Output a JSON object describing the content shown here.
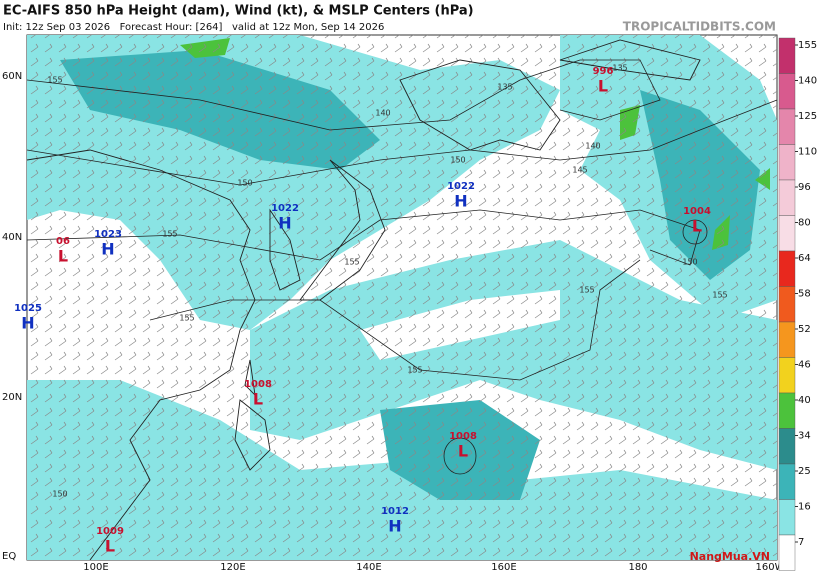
{
  "header": {
    "title": "EC-AIFS 850 hPa Height (dam), Wind (kt), & MSLP Centers (hPa)",
    "subtitle": "Init: 12z Sep 03 2026   Forecast Hour: [264]   valid at 12z Mon, Sep 14 2026",
    "site": "TROPICALTIDBITS.COM"
  },
  "map": {
    "lat_labels": [
      "60N",
      "40N",
      "20N",
      "EQ"
    ],
    "lon_labels": [
      "100E",
      "120E",
      "140E",
      "160E",
      "180",
      "160W"
    ],
    "centers": [
      {
        "type": "L",
        "pressure": 996
      },
      {
        "type": "L",
        "pressure": 1004
      },
      {
        "type": "H",
        "pressure": 1022
      },
      {
        "type": "H",
        "pressure": 1022
      },
      {
        "type": "H",
        "pressure": 1023
      },
      {
        "type": "L",
        "pressure": "06"
      },
      {
        "type": "H",
        "pressure": 1025
      },
      {
        "type": "L",
        "pressure": 1008
      },
      {
        "type": "L",
        "pressure": 1008
      },
      {
        "type": "L",
        "pressure": 1009
      },
      {
        "type": "H",
        "pressure": 1012
      }
    ],
    "contour_labels": [
      135,
      135,
      140,
      140,
      145,
      150,
      150,
      150,
      155,
      155,
      155,
      155,
      155,
      155,
      150,
      155
    ]
  },
  "colorbar": {
    "ticks": [
      155,
      140,
      125,
      110,
      96,
      80,
      64,
      58,
      52,
      46,
      40,
      34,
      25,
      16,
      7
    ],
    "colors": [
      "#c2306c",
      "#d85a8e",
      "#e486ab",
      "#efb3c9",
      "#f4cbd9",
      "#f8dde6",
      "#e8281e",
      "#f05a1e",
      "#f5961e",
      "#f2d21e",
      "#4cc23c",
      "#2c8c8c",
      "#3cb4b8",
      "#8ae4e4",
      "#ffffff"
    ]
  },
  "watermark": "NangMua.VN"
}
